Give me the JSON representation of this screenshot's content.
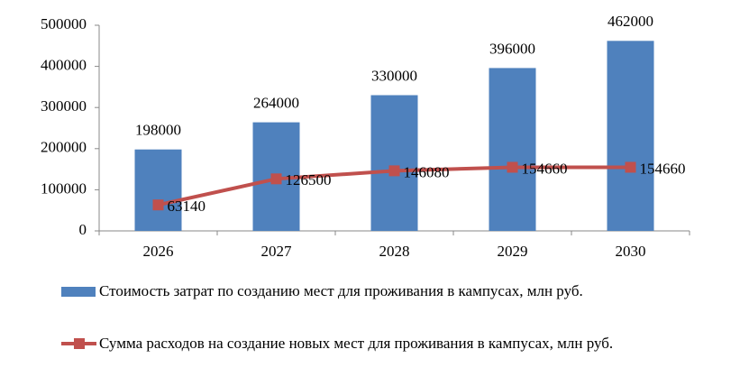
{
  "chart_data": {
    "type": "combo",
    "categories": [
      "2026",
      "2027",
      "2028",
      "2029",
      "2030"
    ],
    "series": [
      {
        "name": "Стоимость затрат по созданию мест для проживания в кампусах, млн руб.",
        "type": "bar",
        "color": "#4f81bd",
        "values": [
          198000,
          264000,
          330000,
          396000,
          462000
        ]
      },
      {
        "name": "Сумма расходов на создание новых мест для проживания в кампусах, млн руб.",
        "type": "line",
        "color": "#c0504d",
        "values": [
          63140,
          126500,
          146080,
          154660,
          154660
        ]
      }
    ],
    "ylim": [
      0,
      500000
    ],
    "yticks": [
      0,
      100000,
      200000,
      300000,
      400000,
      500000
    ],
    "grid": false
  }
}
